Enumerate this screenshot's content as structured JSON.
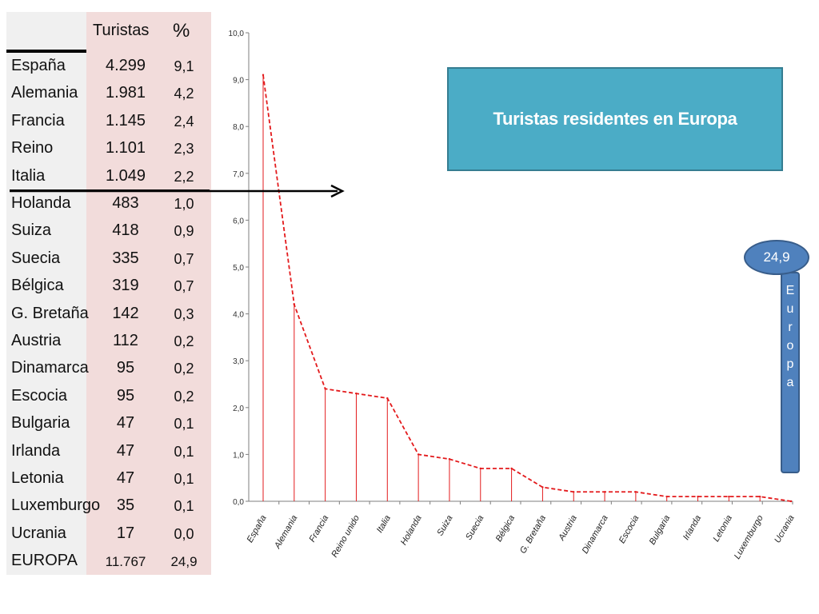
{
  "table": {
    "header_turistas": "Turistas",
    "header_percent": "%",
    "rows": [
      {
        "country": "España",
        "turistas": "4.299",
        "pct": "9,1"
      },
      {
        "country": "Alemania",
        "turistas": "1.981",
        "pct": "4,2"
      },
      {
        "country": "Francia",
        "turistas": "1.145",
        "pct": "2,4"
      },
      {
        "country": "Reino",
        "turistas": "1.101",
        "pct": "2,3"
      },
      {
        "country": "Italia",
        "turistas": "1.049",
        "pct": "2,2"
      },
      {
        "country": "Holanda",
        "turistas": "483",
        "pct": "1,0"
      },
      {
        "country": "Suiza",
        "turistas": "418",
        "pct": "0,9"
      },
      {
        "country": "Suecia",
        "turistas": "335",
        "pct": "0,7"
      },
      {
        "country": "Bélgica",
        "turistas": "319",
        "pct": "0,7"
      },
      {
        "country": "G. Bretaña",
        "turistas": "142",
        "pct": "0,3"
      },
      {
        "country": "Austria",
        "turistas": "112",
        "pct": "0,2"
      },
      {
        "country": "Dinamarca",
        "turistas": "95",
        "pct": "0,2"
      },
      {
        "country": "Escocia",
        "turistas": "95",
        "pct": "0,2"
      },
      {
        "country": "Bulgaria",
        "turistas": "47",
        "pct": "0,1"
      },
      {
        "country": "Irlanda",
        "turistas": "47",
        "pct": "0,1"
      },
      {
        "country": "Letonia",
        "turistas": "47",
        "pct": "0,1"
      },
      {
        "country": "Luxemburgo",
        "turistas": "35",
        "pct": "0,1"
      },
      {
        "country": "Ucrania",
        "turistas": "17",
        "pct": "0,0"
      }
    ],
    "total": {
      "country": "EUROPA",
      "turistas": "11.767",
      "pct": "24,9"
    }
  },
  "title_box": {
    "text": "Turistas residentes en Europa"
  },
  "callout": {
    "value": "24,9",
    "label_letters": [
      "E",
      "u",
      "r",
      "o",
      "p",
      "a"
    ]
  },
  "colors": {
    "line": "#e31a1c",
    "title_box": "#4bacc6",
    "callout": "#4f81bd",
    "table_numbers_bg": "#f2dcdb"
  },
  "chart_data": {
    "type": "line",
    "style": "dashed line with vertical drop lines",
    "categories": [
      "España",
      "Alemania",
      "Francia",
      "Reino unido",
      "Italia",
      "Holanda",
      "Suiza",
      "Suecia",
      "Bélgica",
      "G. Bretaña",
      "Austria",
      "Dinamarca",
      "Escocia",
      "Bulgaria",
      "Irlanda",
      "Letonia",
      "Luxemburgo",
      "Ucrania"
    ],
    "values": [
      9.1,
      4.2,
      2.4,
      2.3,
      2.2,
      1.0,
      0.9,
      0.7,
      0.7,
      0.3,
      0.2,
      0.2,
      0.2,
      0.1,
      0.1,
      0.1,
      0.1,
      0.0
    ],
    "ylim": [
      0,
      10
    ],
    "yticks": [
      "0,0",
      "1,0",
      "2,0",
      "3,0",
      "4,0",
      "5,0",
      "6,0",
      "7,0",
      "8,0",
      "9,0",
      "10,0"
    ],
    "grid": false
  }
}
